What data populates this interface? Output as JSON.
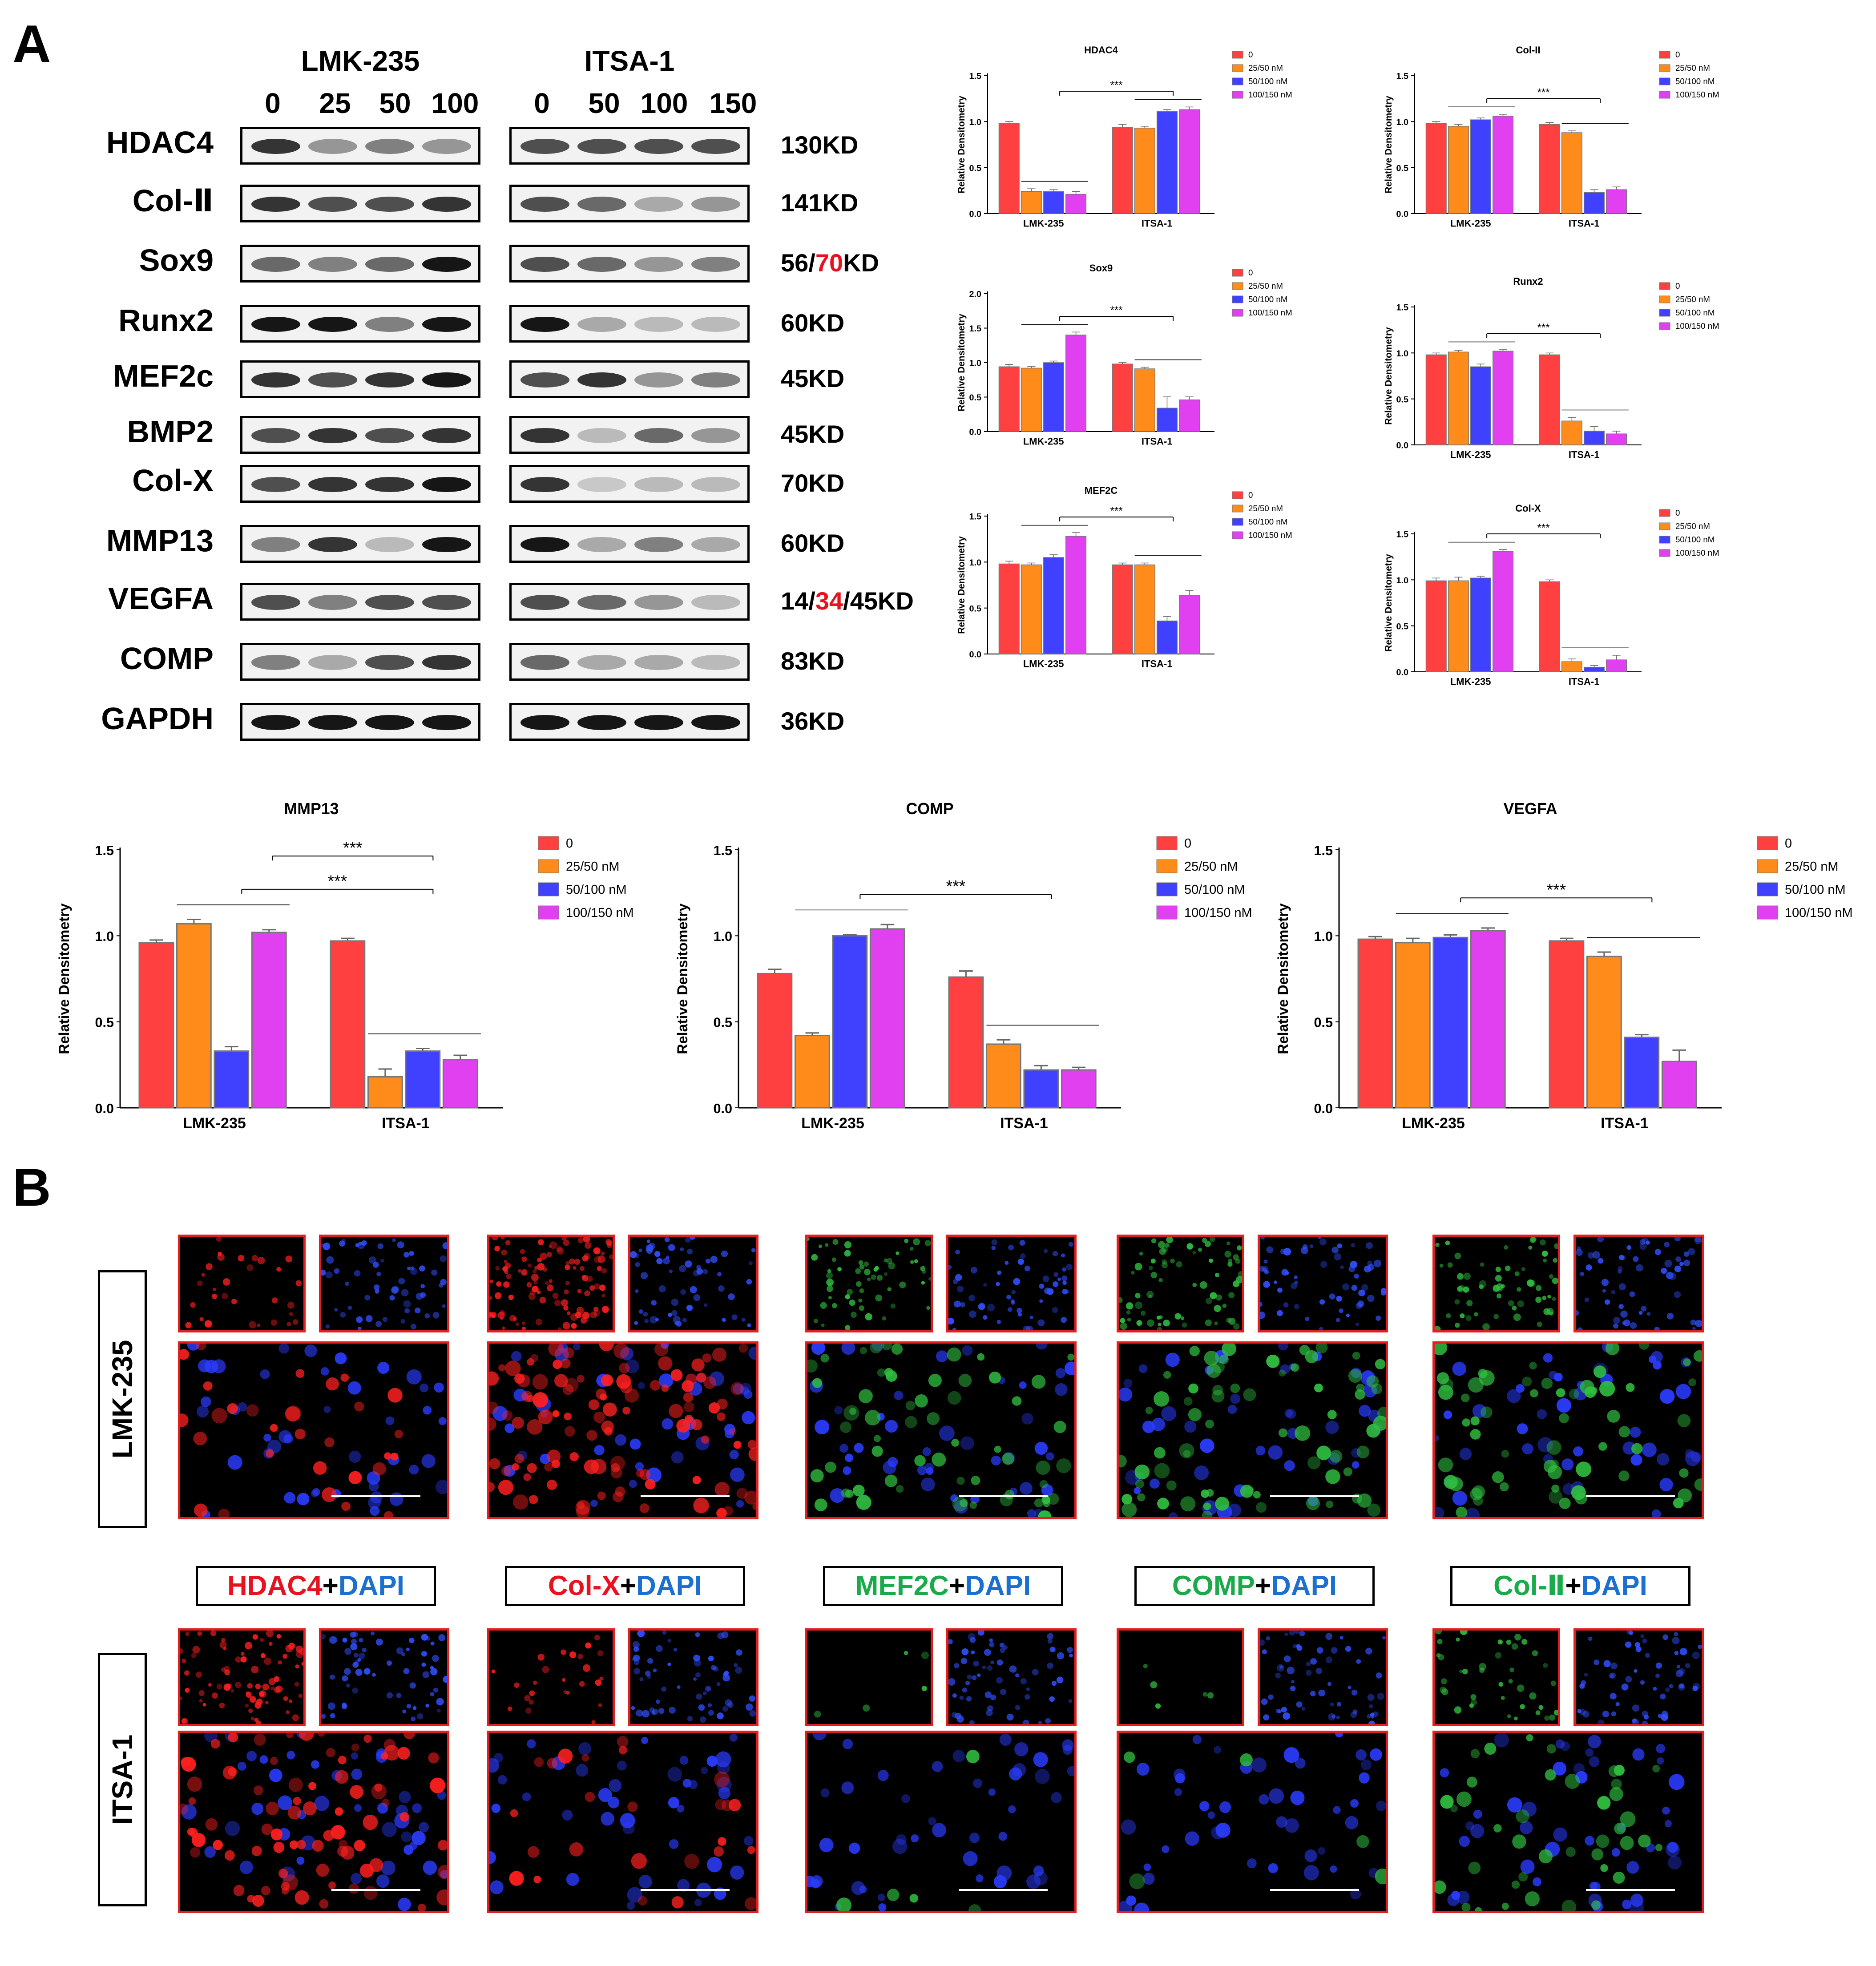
{
  "panels": {
    "a": "A",
    "b": "B"
  },
  "western_blot": {
    "groups": [
      {
        "name": "LMK-235",
        "lanes": [
          "0",
          "25",
          "50",
          "100"
        ]
      },
      {
        "name": "ITSA-1",
        "lanes": [
          "0",
          "50",
          "100",
          "150"
        ]
      }
    ],
    "rows": [
      {
        "protein": "HDAC4",
        "kd": [
          {
            "t": "130KD"
          }
        ]
      },
      {
        "protein": "Col-Ⅱ",
        "kd": [
          {
            "t": "141KD"
          }
        ]
      },
      {
        "protein": "Sox9",
        "kd": [
          {
            "t": "56/"
          },
          {
            "t": "70",
            "red": true
          },
          {
            "t": "KD"
          }
        ]
      },
      {
        "protein": "Runx2",
        "kd": [
          {
            "t": "60KD"
          }
        ]
      },
      {
        "protein": "MEF2c",
        "kd": [
          {
            "t": "45KD"
          }
        ]
      },
      {
        "protein": "BMP2",
        "kd": [
          {
            "t": "45KD"
          }
        ]
      },
      {
        "protein": "Col-X",
        "kd": [
          {
            "t": "70KD"
          }
        ]
      },
      {
        "protein": "MMP13",
        "kd": [
          {
            "t": "60KD"
          }
        ]
      },
      {
        "protein": "VEGFA",
        "kd": [
          {
            "t": "14/"
          },
          {
            "t": "34",
            "red": true
          },
          {
            "t": "/45KD"
          }
        ]
      },
      {
        "protein": "COMP",
        "kd": [
          {
            "t": "83KD"
          }
        ]
      },
      {
        "protein": "GAPDH",
        "kd": [
          {
            "t": "36KD"
          }
        ]
      }
    ]
  },
  "legend": {
    "entries": [
      "0",
      "25/50 nM",
      "50/100 nM",
      "100/150 nM"
    ],
    "colors": [
      "#ff4040",
      "#ff8c1a",
      "#4040ff",
      "#e040f0"
    ]
  },
  "chart_data": [
    {
      "type": "bar",
      "title": "HDAC4",
      "ylabel": "Relative Densitometry",
      "categories": [
        "LMK-235",
        "ITSA-1"
      ],
      "ylim": [
        0,
        1.5
      ],
      "yticks": [
        "0.0",
        "0.5",
        "1.0",
        "1.5"
      ],
      "series": [
        {
          "name": "0",
          "values": [
            0.98,
            0.94
          ],
          "err": [
            0.01,
            0.02
          ]
        },
        {
          "name": "25/50 nM",
          "values": [
            0.24,
            0.93
          ],
          "err": [
            0.02,
            0.01
          ]
        },
        {
          "name": "50/100 nM",
          "values": [
            0.24,
            1.11
          ],
          "err": [
            0.01,
            0.01
          ]
        },
        {
          "name": "100/150 nM",
          "values": [
            0.21,
            1.13
          ],
          "err": [
            0.02,
            0.02
          ]
        }
      ],
      "sig": "***"
    },
    {
      "type": "bar",
      "title": "Col-II",
      "ylabel": "Relative Densitometry",
      "categories": [
        "LMK-235",
        "ITSA-1"
      ],
      "ylim": [
        0,
        1.5
      ],
      "yticks": [
        "0.0",
        "0.5",
        "1.0",
        "1.5"
      ],
      "series": [
        {
          "name": "0",
          "values": [
            0.98,
            0.97
          ],
          "err": [
            0.01,
            0.01
          ]
        },
        {
          "name": "25/50 nM",
          "values": [
            0.95,
            0.88
          ],
          "err": [
            0.01,
            0.01
          ]
        },
        {
          "name": "50/100 nM",
          "values": [
            1.02,
            0.23
          ],
          "err": [
            0.01,
            0.02
          ]
        },
        {
          "name": "100/150 nM",
          "values": [
            1.06,
            0.26
          ],
          "err": [
            0.01,
            0.02
          ]
        }
      ],
      "sig": "***"
    },
    {
      "type": "bar",
      "title": "Sox9",
      "ylabel": "Relative Densitometry",
      "categories": [
        "LMK-235",
        "ITSA-1"
      ],
      "ylim": [
        0,
        2.0
      ],
      "yticks": [
        "0.0",
        "0.5",
        "1.0",
        "1.5",
        "2.0"
      ],
      "series": [
        {
          "name": "0",
          "values": [
            0.94,
            0.98
          ],
          "err": [
            0.02,
            0.01
          ]
        },
        {
          "name": "25/50 nM",
          "values": [
            0.92,
            0.91
          ],
          "err": [
            0.01,
            0.01
          ]
        },
        {
          "name": "50/100 nM",
          "values": [
            1.0,
            0.34
          ],
          "err": [
            0.01,
            0.15
          ]
        },
        {
          "name": "100/150 nM",
          "values": [
            1.4,
            0.46
          ],
          "err": [
            0.03,
            0.03
          ]
        }
      ],
      "sig": "***"
    },
    {
      "type": "bar",
      "title": "Runx2",
      "ylabel": "Relative Densitometry",
      "categories": [
        "LMK-235",
        "ITSA-1"
      ],
      "ylim": [
        0,
        1.5
      ],
      "yticks": [
        "0.0",
        "0.5",
        "1.0",
        "1.5"
      ],
      "series": [
        {
          "name": "0",
          "values": [
            0.98,
            0.98
          ],
          "err": [
            0.01,
            0.01
          ]
        },
        {
          "name": "25/50 nM",
          "values": [
            1.01,
            0.26
          ],
          "err": [
            0.01,
            0.03
          ]
        },
        {
          "name": "50/100 nM",
          "values": [
            0.85,
            0.15
          ],
          "err": [
            0.02,
            0.04
          ]
        },
        {
          "name": "100/150 nM",
          "values": [
            1.02,
            0.12
          ],
          "err": [
            0.01,
            0.02
          ]
        }
      ],
      "sig": "***"
    },
    {
      "type": "bar",
      "title": "MEF2C",
      "ylabel": "Relative Densitometry",
      "categories": [
        "LMK-235",
        "ITSA-1"
      ],
      "ylim": [
        0,
        1.5
      ],
      "yticks": [
        "0.0",
        "0.5",
        "1.0",
        "1.5"
      ],
      "series": [
        {
          "name": "0",
          "values": [
            0.98,
            0.97
          ],
          "err": [
            0.02,
            0.01
          ]
        },
        {
          "name": "25/50 nM",
          "values": [
            0.97,
            0.97
          ],
          "err": [
            0.01,
            0.01
          ]
        },
        {
          "name": "50/100 nM",
          "values": [
            1.05,
            0.36
          ],
          "err": [
            0.02,
            0.04
          ]
        },
        {
          "name": "100/150 nM",
          "values": [
            1.28,
            0.64
          ],
          "err": [
            0.03,
            0.04
          ]
        }
      ],
      "sig": "***"
    },
    {
      "type": "bar",
      "title": "Col-X",
      "ylabel": "Relative Densitometry",
      "categories": [
        "LMK-235",
        "ITSA-1"
      ],
      "ylim": [
        0,
        1.5
      ],
      "yticks": [
        "0.0",
        "0.5",
        "1.0",
        "1.5"
      ],
      "series": [
        {
          "name": "0",
          "values": [
            0.99,
            0.98
          ],
          "err": [
            0.02,
            0.01
          ]
        },
        {
          "name": "25/50 nM",
          "values": [
            0.99,
            0.11
          ],
          "err": [
            0.03,
            0.02
          ]
        },
        {
          "name": "50/100 nM",
          "values": [
            1.02,
            0.05
          ],
          "err": [
            0.01,
            0.01
          ]
        },
        {
          "name": "100/150 nM",
          "values": [
            1.31,
            0.13
          ],
          "err": [
            0.01,
            0.04
          ]
        }
      ],
      "sig": "***"
    },
    {
      "type": "bar",
      "title": "MMP13",
      "ylabel": "Relative Densitometry",
      "categories": [
        "LMK-235",
        "ITSA-1"
      ],
      "ylim": [
        0,
        1.5
      ],
      "yticks": [
        "0.0",
        "0.5",
        "1.0",
        "1.5"
      ],
      "series": [
        {
          "name": "0",
          "values": [
            0.96,
            0.97
          ],
          "err": [
            0.01,
            0.01
          ]
        },
        {
          "name": "25/50 nM",
          "values": [
            1.07,
            0.18
          ],
          "err": [
            0.02,
            0.04
          ]
        },
        {
          "name": "50/100 nM",
          "values": [
            0.33,
            0.33
          ],
          "err": [
            0.02,
            0.01
          ]
        },
        {
          "name": "100/150 nM",
          "values": [
            1.02,
            0.28
          ],
          "err": [
            0.01,
            0.02
          ]
        }
      ],
      "sig": "***",
      "sig2": "***"
    },
    {
      "type": "bar",
      "title": "COMP",
      "ylabel": "Relative Densitometry",
      "categories": [
        "LMK-235",
        "ITSA-1"
      ],
      "ylim": [
        0,
        1.5
      ],
      "yticks": [
        "0.0",
        "0.5",
        "1.0",
        "1.5"
      ],
      "series": [
        {
          "name": "0",
          "values": [
            0.78,
            0.76
          ],
          "err": [
            0.02,
            0.03
          ]
        },
        {
          "name": "25/50 nM",
          "values": [
            0.42,
            0.37
          ],
          "err": [
            0.01,
            0.02
          ]
        },
        {
          "name": "50/100 nM",
          "values": [
            1.0,
            0.22
          ],
          "err": [
            0.0,
            0.02
          ]
        },
        {
          "name": "100/150 nM",
          "values": [
            1.04,
            0.22
          ],
          "err": [
            0.02,
            0.01
          ]
        }
      ],
      "sig": "***"
    },
    {
      "type": "bar",
      "title": "VEGFA",
      "ylabel": "Relative Densitometry",
      "categories": [
        "LMK-235",
        "ITSA-1"
      ],
      "ylim": [
        0,
        1.5
      ],
      "yticks": [
        "0.0",
        "0.5",
        "1.0",
        "1.5"
      ],
      "series": [
        {
          "name": "0",
          "values": [
            0.98,
            0.97
          ],
          "err": [
            0.01,
            0.01
          ]
        },
        {
          "name": "25/50 nM",
          "values": [
            0.96,
            0.88
          ],
          "err": [
            0.02,
            0.02
          ]
        },
        {
          "name": "50/100 nM",
          "values": [
            0.99,
            0.41
          ],
          "err": [
            0.01,
            0.01
          ]
        },
        {
          "name": "100/150 nM",
          "values": [
            1.03,
            0.27
          ],
          "err": [
            0.01,
            0.06
          ]
        }
      ],
      "sig": "***"
    }
  ],
  "panel_b": {
    "rows": [
      "LMK-235",
      "ITSA-1"
    ],
    "stains": [
      {
        "marker": "HDAC4",
        "joiner": "+",
        "dapi": "DAPI",
        "marker_color": "#e8121f"
      },
      {
        "marker": "Col-X",
        "joiner": "+",
        "dapi": "DAPI",
        "marker_color": "#e8121f"
      },
      {
        "marker": "MEF2C",
        "joiner": "+",
        "dapi": "DAPI",
        "marker_color": "#1aaa4a"
      },
      {
        "marker": "COMP",
        "joiner": "+",
        "dapi": "DAPI",
        "marker_color": "#1aaa4a"
      },
      {
        "marker": "Col-Ⅱ",
        "joiner": "+",
        "dapi": "DAPI",
        "marker_color": "#1aaa4a"
      }
    ],
    "dapi_color": "#1a6fd0"
  }
}
